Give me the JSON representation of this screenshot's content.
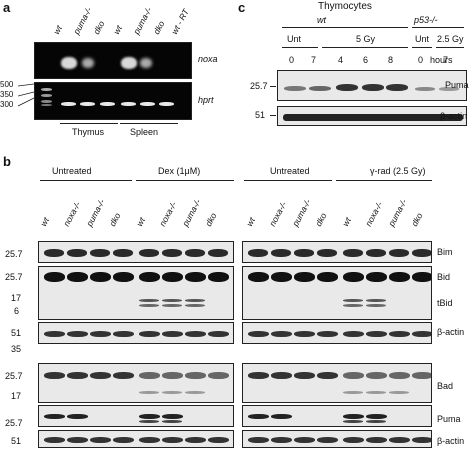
{
  "panel_a": {
    "letter": "a",
    "lanes": [
      "wt",
      "puma-/-",
      "dko",
      "wt",
      "puma-/-",
      "dko",
      "wt - RT"
    ],
    "gene_top": "noxa",
    "gene_bottom": "hprt",
    "markers": [
      "500",
      "350",
      "300"
    ],
    "groups": [
      "Thymus",
      "Spleen"
    ]
  },
  "panel_c": {
    "letter": "c",
    "title": "Thymocytes",
    "genotype_wt": "wt",
    "genotype_p53": "p53-/-",
    "cond_unt": "Unt",
    "cond_5gy": "5 Gy",
    "cond_unt2": "Unt",
    "cond_25gy": "2.5  Gy",
    "hours": [
      "0",
      "7",
      "4",
      "6",
      "8",
      "0",
      "7"
    ],
    "hours_label": "hours",
    "mw": [
      "25.7",
      "51"
    ],
    "proteins": [
      "Puma",
      "β-actin"
    ]
  },
  "panel_b": {
    "letter": "b",
    "groups_left": [
      "Untreated",
      "Dex (1μM)"
    ],
    "groups_right": [
      "Untreated",
      "γ-rad (2.5 Gy)"
    ],
    "lanes": [
      "wt",
      "noxa-/-",
      "puma-/-",
      "dko",
      "wt",
      "noxa-/-",
      "puma-/-",
      "dko"
    ],
    "mw_top": [
      "25.7",
      "25.7",
      "17",
      "6",
      "51",
      "35"
    ],
    "mw_bottom": [
      "25.7",
      "17",
      "25.7",
      "51"
    ],
    "proteins": [
      "Bim",
      "Bid",
      "tBid",
      "β-actin",
      "Bad",
      "Puma",
      "β-actin"
    ]
  }
}
